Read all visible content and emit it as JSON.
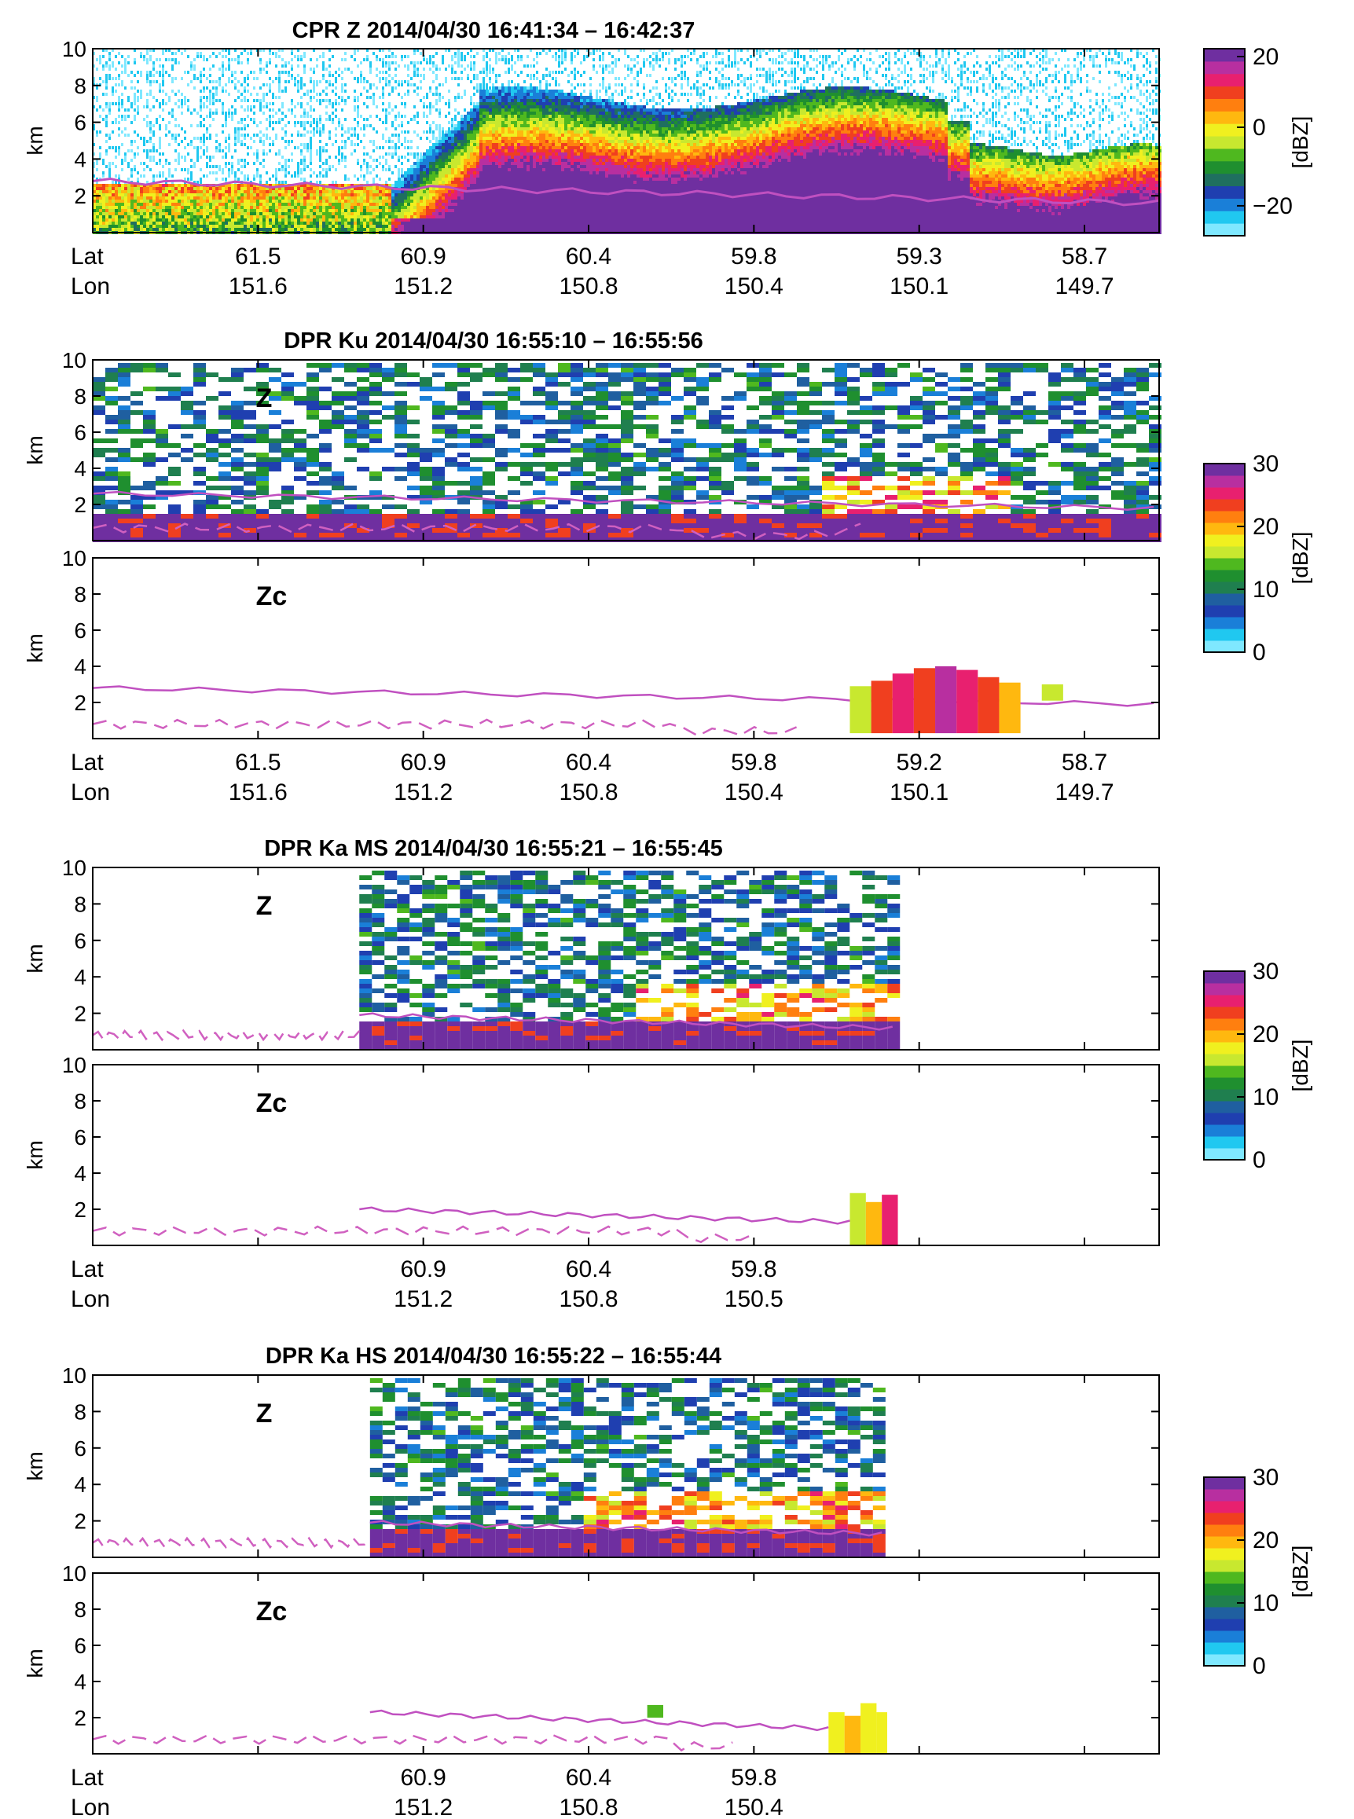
{
  "colormaps": {
    "cpr": [
      "#7fe8ff",
      "#20c8f0",
      "#1a7fd8",
      "#1f3fb0",
      "#1f6f5f",
      "#1f8f2f",
      "#4fb81f",
      "#c8e82f",
      "#f0f01f",
      "#ffb80f",
      "#ff7f0f",
      "#f03f1f",
      "#e8206f",
      "#b82fa0",
      "#6f2fa0"
    ],
    "dpr": [
      "#7fe8ff",
      "#20c8f0",
      "#1a7fd8",
      "#1f3fb0",
      "#1f5fa0",
      "#1f7f4f",
      "#1f8f2f",
      "#4fb81f",
      "#c8e82f",
      "#f0f01f",
      "#ffb80f",
      "#ff7f0f",
      "#f03f1f",
      "#e8206f",
      "#b82fa0",
      "#6f2fa0"
    ]
  },
  "line_colors": {
    "freezing": "#c050c0",
    "clutter": "#d060c0"
  },
  "colorbars": [
    {
      "ticks": [
        "20",
        "0",
        "−20"
      ],
      "label": "[dBZ]",
      "colormap": "cpr"
    },
    {
      "ticks": [
        "30",
        "20",
        "10",
        "0"
      ],
      "label": "[dBZ]",
      "colormap": "dpr"
    },
    {
      "ticks": [
        "30",
        "20",
        "10",
        "0"
      ],
      "label": "[dBZ]",
      "colormap": "dpr"
    },
    {
      "ticks": [
        "30",
        "20",
        "10",
        "0"
      ],
      "label": "[dBZ]",
      "colormap": "dpr"
    }
  ],
  "axis_labels": {
    "lat": "Lat",
    "lon": "Lon"
  },
  "chart_data": [
    {
      "type": "heatmap",
      "title": "CPR Z  2014/04/30 16:41:34 – 16:42:37",
      "ylabel": "km",
      "ylim": [
        0,
        10
      ],
      "yticks": [
        "2",
        "4",
        "6",
        "8",
        "10"
      ],
      "panel_label": "",
      "lat": [
        "61.5",
        "60.9",
        "60.4",
        "59.8",
        "59.3",
        "58.7"
      ],
      "lon": [
        "151.6",
        "151.2",
        "150.8",
        "150.4",
        "150.1",
        "149.7"
      ],
      "colorbar": "[dBZ] −30 to 20"
    },
    {
      "type": "heatmap",
      "title": "DPR Ku   2014/04/30 16:55:10 – 16:55:56",
      "ylabel": "km",
      "ylim": [
        0,
        10
      ],
      "yticks": [
        "2",
        "4",
        "6",
        "8",
        "10"
      ],
      "panel_label": "Z",
      "colorbar": "[dBZ] 0 to 30"
    },
    {
      "type": "heatmap",
      "title": "",
      "ylabel": "km",
      "ylim": [
        0,
        10
      ],
      "yticks": [
        "2",
        "4",
        "6",
        "8",
        "10"
      ],
      "panel_label": "Zc",
      "lat": [
        "61.5",
        "60.9",
        "60.4",
        "59.8",
        "59.2",
        "58.7"
      ],
      "lon": [
        "151.6",
        "151.2",
        "150.8",
        "150.4",
        "150.1",
        "149.7"
      ]
    },
    {
      "type": "heatmap",
      "title": "DPR Ka MS  2014/04/30 16:55:21 – 16:55:45",
      "ylabel": "km",
      "ylim": [
        0,
        10
      ],
      "yticks": [
        "2",
        "4",
        "6",
        "8",
        "10"
      ],
      "panel_label": "Z",
      "colorbar": "[dBZ] 0 to 30"
    },
    {
      "type": "heatmap",
      "title": "",
      "ylabel": "km",
      "ylim": [
        0,
        10
      ],
      "yticks": [
        "2",
        "4",
        "6",
        "8",
        "10"
      ],
      "panel_label": "Zc",
      "lat": [
        "60.9",
        "60.4",
        "59.8"
      ],
      "lon": [
        "151.2",
        "150.8",
        "150.5"
      ]
    },
    {
      "type": "heatmap",
      "title": "DPR Ka HS  2014/04/30 16:55:22 – 16:55:44",
      "ylabel": "km",
      "ylim": [
        0,
        10
      ],
      "yticks": [
        "2",
        "4",
        "6",
        "8",
        "10"
      ],
      "panel_label": "Z",
      "colorbar": "[dBZ] 0 to 30"
    },
    {
      "type": "heatmap",
      "title": "",
      "ylabel": "km",
      "ylim": [
        0,
        10
      ],
      "yticks": [
        "2",
        "4",
        "6",
        "8",
        "10"
      ],
      "panel_label": "Zc",
      "lat": [
        "60.9",
        "60.4",
        "59.8"
      ],
      "lon": [
        "151.2",
        "150.8",
        "150.4"
      ]
    }
  ]
}
